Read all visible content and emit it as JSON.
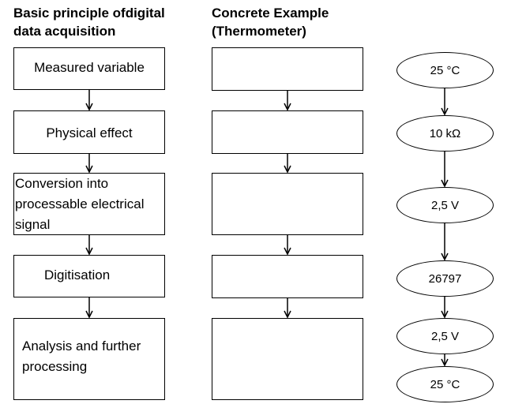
{
  "headings": {
    "left": "Basic principle ofdigital\ndata acquisition",
    "middle": "Concrete Example\n(Thermometer)"
  },
  "principle_steps": [
    "Measured variable",
    "Physical effect",
    "Conversion into\nprocessable electrical\nsignal",
    "Digitisation",
    "Analysis and further\nprocessing"
  ],
  "example_values": [
    "25 °C",
    "10 kΩ",
    "2,5 V",
    "26797",
    "2,5 V",
    "25 °C"
  ]
}
